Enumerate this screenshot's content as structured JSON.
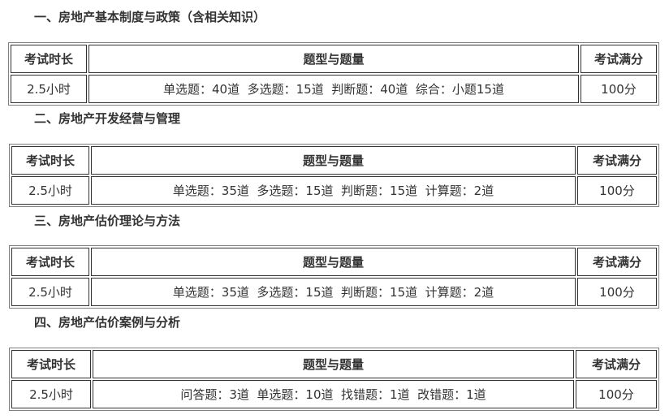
{
  "sections": [
    {
      "title": "一、房地产基本制度与政策（含相关知识）",
      "headers": [
        "考试时长",
        "题型与题量",
        "考试满分"
      ],
      "row": [
        "2.5小时",
        "单选题：40道  多选题：15道  判断题：40道  综合：小题15道",
        "100分"
      ]
    },
    {
      "title": "二、房地产开发经营与管理",
      "headers": [
        "考试时长",
        "题型与题量",
        "考试满分"
      ],
      "row": [
        "2.5小时",
        "单选题：35道  多选题：15道  判断题：15道  计算题：2道",
        "100分"
      ]
    },
    {
      "title": "三、房地产估价理论与方法",
      "headers": [
        "考试时长",
        "题型与题量",
        "考试满分"
      ],
      "row": [
        "2.5小时",
        "单选题：35道  多选题：15道  判断题：15道  计算题：2道",
        "100分"
      ]
    },
    {
      "title": "四、房地产估价案例与分析",
      "headers": [
        "考试时长",
        "题型与题量",
        "考试满分"
      ],
      "row": [
        "2.5小时",
        "问答题：3道  单选题：10道  找错题：1道  改错题：1道",
        "100分"
      ]
    }
  ]
}
